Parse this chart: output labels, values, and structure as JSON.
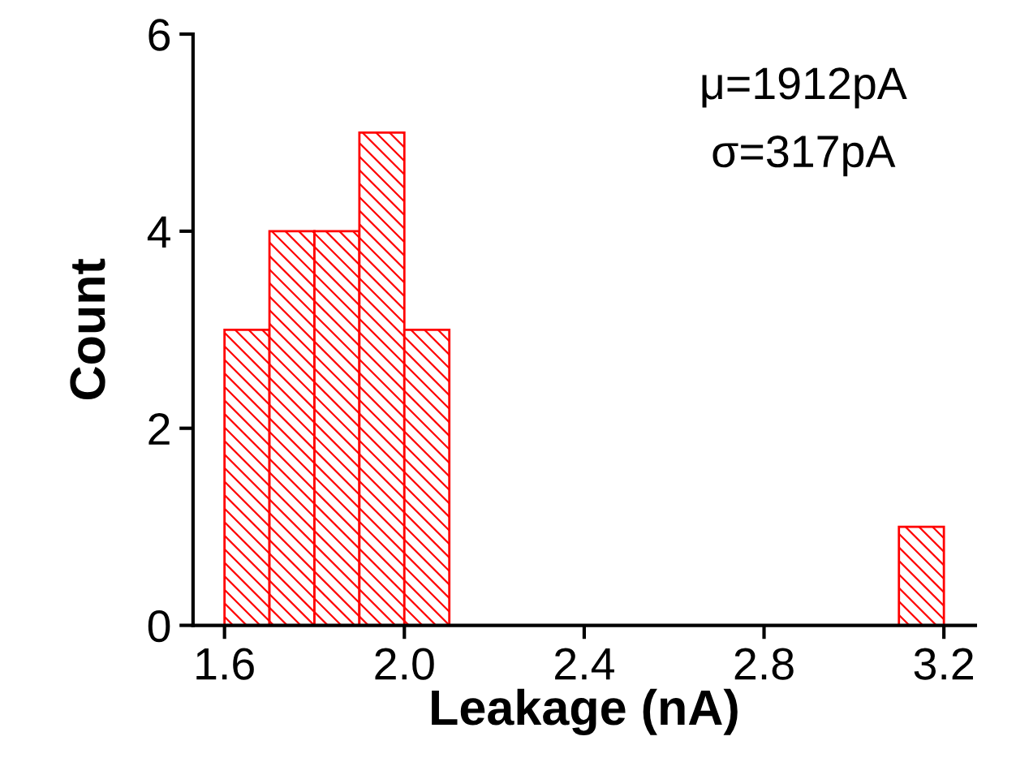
{
  "chart_data": {
    "type": "histogram",
    "xlabel": "Leakage (nA)",
    "ylabel": "Count",
    "bins": [
      1.6,
      1.7,
      1.8,
      1.9,
      2.0,
      2.1,
      2.2,
      2.3,
      2.4,
      2.5,
      2.6,
      2.7,
      2.8,
      2.9,
      3.0,
      3.1,
      3.2
    ],
    "values": [
      3,
      4,
      4,
      5,
      3,
      0,
      0,
      0,
      0,
      0,
      0,
      0,
      0,
      0,
      0,
      1
    ],
    "color": "#ff0000",
    "xlim": [
      1.53,
      3.27
    ],
    "xticks": [
      {
        "value": 1.6,
        "label": "1.6"
      },
      {
        "value": 2.0,
        "label": "2.0"
      },
      {
        "value": 2.4,
        "label": "2.4"
      },
      {
        "value": 2.8,
        "label": "2.8"
      },
      {
        "value": 3.2,
        "label": "3.2"
      }
    ],
    "ylim": [
      0,
      6
    ],
    "yticks": [
      0,
      2,
      4,
      6
    ],
    "annotations": [
      "μ=1912pA",
      "σ=317pA"
    ],
    "grid": false,
    "legend": false
  }
}
